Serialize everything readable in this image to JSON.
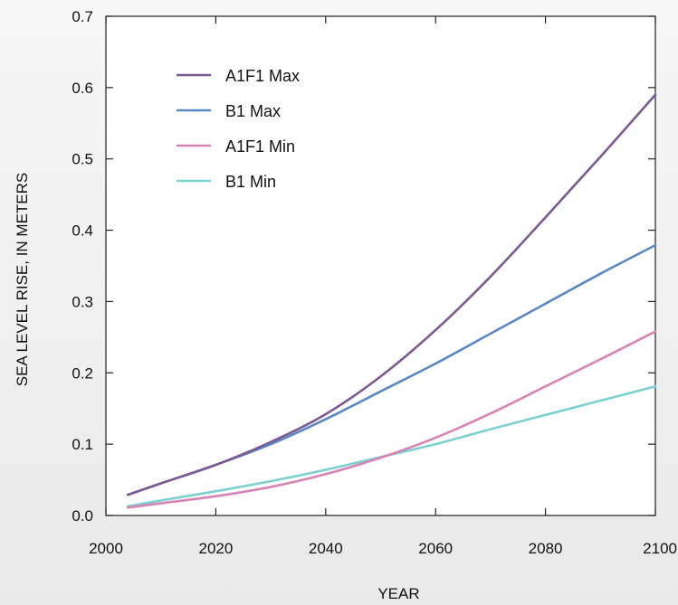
{
  "chart_data": {
    "type": "line",
    "title": "",
    "xlabel": "YEAR",
    "ylabel": "SEA LEVEL RISE, IN METERS",
    "xlim": [
      2000,
      2100
    ],
    "ylim": [
      0.0,
      0.7
    ],
    "xticks": [
      "2000",
      "2020",
      "2040",
      "2060",
      "2080",
      "2100"
    ],
    "yticks": [
      "0.0",
      "0.1",
      "0.2",
      "0.3",
      "0.4",
      "0.5",
      "0.6",
      "0.7"
    ],
    "grid": false,
    "legend_position": "top-left",
    "series": [
      {
        "name": "A1F1 Max",
        "color": "#7a5a90",
        "x": [
          2004,
          2010,
          2020,
          2030,
          2040,
          2050,
          2060,
          2070,
          2080,
          2090,
          2100
        ],
        "y": [
          0.029,
          0.045,
          0.071,
          0.103,
          0.142,
          0.195,
          0.26,
          0.335,
          0.418,
          0.503,
          0.59
        ]
      },
      {
        "name": "B1 Max",
        "color": "#5b87c5",
        "x": [
          2004,
          2010,
          2020,
          2030,
          2040,
          2050,
          2060,
          2070,
          2080,
          2090,
          2100
        ],
        "y": [
          0.029,
          0.045,
          0.071,
          0.1,
          0.135,
          0.174,
          0.213,
          0.255,
          0.297,
          0.339,
          0.379
        ]
      },
      {
        "name": "A1F1 Min",
        "color": "#d883b4",
        "x": [
          2004,
          2010,
          2020,
          2030,
          2040,
          2050,
          2060,
          2070,
          2080,
          2090,
          2100
        ],
        "y": [
          0.011,
          0.017,
          0.027,
          0.04,
          0.058,
          0.081,
          0.109,
          0.143,
          0.181,
          0.219,
          0.258
        ]
      },
      {
        "name": "B1 Min",
        "color": "#7cd0cf",
        "x": [
          2004,
          2010,
          2020,
          2030,
          2040,
          2050,
          2060,
          2070,
          2080,
          2090,
          2100
        ],
        "y": [
          0.013,
          0.021,
          0.034,
          0.048,
          0.064,
          0.082,
          0.1,
          0.121,
          0.141,
          0.161,
          0.181
        ]
      }
    ]
  }
}
